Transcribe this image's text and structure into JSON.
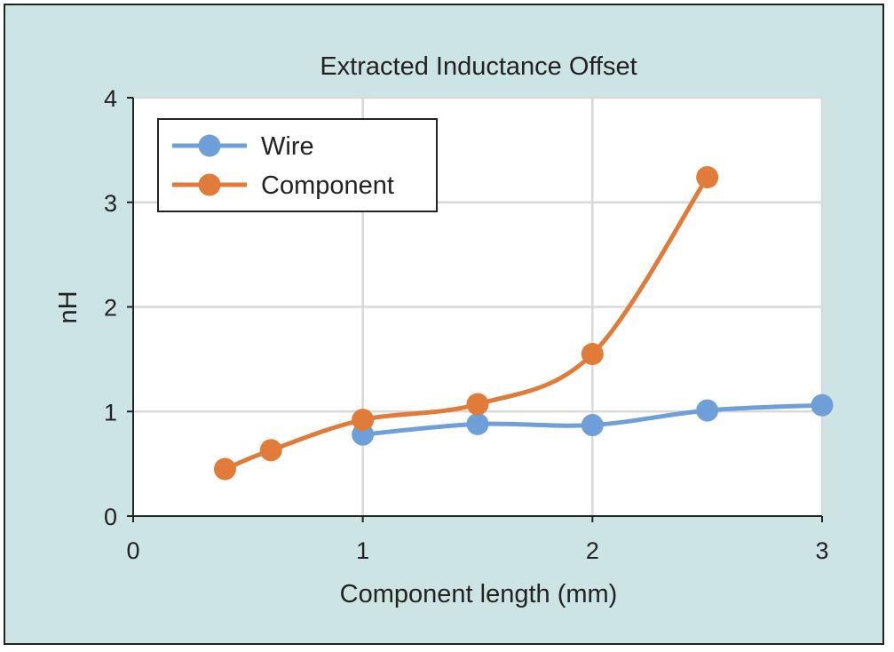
{
  "colors": {
    "frame_background": "#cde4e4",
    "plot_background": "#ffffff",
    "grid": "#d9d9d9",
    "axis": "#222222",
    "wire": "#6f9fd8",
    "component": "#e07b39"
  },
  "chart_data": {
    "type": "line",
    "title": "Extracted Inductance Offset",
    "xlabel": "Component length (mm)",
    "ylabel": "nH",
    "xlim": [
      0,
      3
    ],
    "ylim": [
      0,
      4
    ],
    "x_ticks": [
      0,
      1,
      2,
      3
    ],
    "y_ticks": [
      0,
      1,
      2,
      3,
      4
    ],
    "x_tick_labels": [
      "0",
      "1",
      "2",
      "3"
    ],
    "y_tick_labels": [
      "0",
      "1",
      "2",
      "3",
      "4"
    ],
    "grid": true,
    "smooth": true,
    "legend_position": "top-left",
    "series": [
      {
        "name": "Wire",
        "color": "#6f9fd8",
        "x": [
          1.0,
          1.5,
          2.0,
          2.5,
          3.0
        ],
        "y": [
          0.78,
          0.88,
          0.87,
          1.01,
          1.06
        ]
      },
      {
        "name": "Component",
        "color": "#e07b39",
        "x": [
          0.4,
          0.6,
          1.0,
          1.5,
          2.0,
          2.5
        ],
        "y": [
          0.45,
          0.63,
          0.92,
          1.07,
          1.55,
          3.24
        ]
      }
    ]
  }
}
